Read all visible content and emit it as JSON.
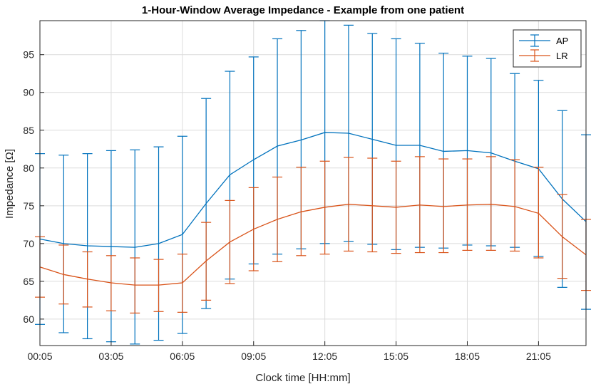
{
  "chart_data": {
    "type": "line",
    "title": "1-Hour-Window Average Impedance - Example from one patient",
    "xlabel": "Clock time [HH:mm]",
    "ylabel": "Impedance [Ω]",
    "x_hours": [
      0,
      1,
      2,
      3,
      4,
      5,
      6,
      7,
      8,
      9,
      10,
      11,
      12,
      13,
      14,
      15,
      16,
      17,
      18,
      19,
      20,
      21,
      22,
      23
    ],
    "xlim": [
      0,
      23
    ],
    "ylim": [
      56.5,
      99.5
    ],
    "x_ticks": [
      {
        "hour": 0,
        "label": "00:05"
      },
      {
        "hour": 3,
        "label": "03:05"
      },
      {
        "hour": 6,
        "label": "06:05"
      },
      {
        "hour": 9,
        "label": "09:05"
      },
      {
        "hour": 12,
        "label": "12:05"
      },
      {
        "hour": 15,
        "label": "15:05"
      },
      {
        "hour": 18,
        "label": "18:05"
      },
      {
        "hour": 21,
        "label": "21:05"
      }
    ],
    "y_ticks": [
      60,
      65,
      70,
      75,
      80,
      85,
      90,
      95
    ],
    "grid": true,
    "legend_position": "top-right",
    "series": [
      {
        "name": "AP",
        "color": "#0072BD",
        "values": [
          70.6,
          70.0,
          69.7,
          69.6,
          69.5,
          70.0,
          71.2,
          75.3,
          79.1,
          81.1,
          82.9,
          83.7,
          84.7,
          84.6,
          83.8,
          83.0,
          83.0,
          82.2,
          82.3,
          82.0,
          80.9,
          79.9,
          75.9,
          72.9
        ],
        "lower": [
          59.3,
          58.2,
          57.4,
          57.0,
          56.7,
          57.2,
          58.1,
          61.4,
          65.3,
          67.3,
          68.6,
          69.3,
          70.0,
          70.3,
          69.9,
          69.2,
          69.5,
          69.4,
          69.8,
          69.7,
          69.5,
          68.3,
          64.2,
          61.3
        ],
        "upper": [
          81.9,
          81.7,
          81.9,
          82.3,
          82.4,
          82.8,
          84.2,
          89.2,
          92.8,
          94.7,
          97.1,
          98.2,
          99.5,
          98.9,
          97.8,
          97.1,
          96.5,
          95.2,
          94.8,
          94.5,
          92.5,
          91.6,
          87.6,
          84.4
        ]
      },
      {
        "name": "LR",
        "color": "#D95319",
        "values": [
          66.9,
          65.9,
          65.3,
          64.8,
          64.5,
          64.5,
          64.8,
          67.7,
          70.2,
          71.9,
          73.2,
          74.2,
          74.8,
          75.2,
          75.0,
          74.8,
          75.1,
          74.9,
          75.1,
          75.2,
          74.9,
          74.0,
          70.9,
          68.5
        ],
        "lower": [
          62.9,
          62.0,
          61.6,
          61.1,
          60.8,
          61.0,
          60.9,
          62.5,
          64.7,
          66.4,
          67.6,
          68.4,
          68.6,
          69.0,
          68.9,
          68.7,
          68.8,
          68.8,
          69.1,
          69.1,
          69.0,
          68.1,
          65.4,
          63.8
        ],
        "upper": [
          70.9,
          69.8,
          68.9,
          68.4,
          68.1,
          67.9,
          68.6,
          72.8,
          75.7,
          77.4,
          78.8,
          80.1,
          80.9,
          81.4,
          81.3,
          80.9,
          81.5,
          81.2,
          81.2,
          81.5,
          81.1,
          80.1,
          76.5,
          73.2
        ]
      }
    ]
  }
}
